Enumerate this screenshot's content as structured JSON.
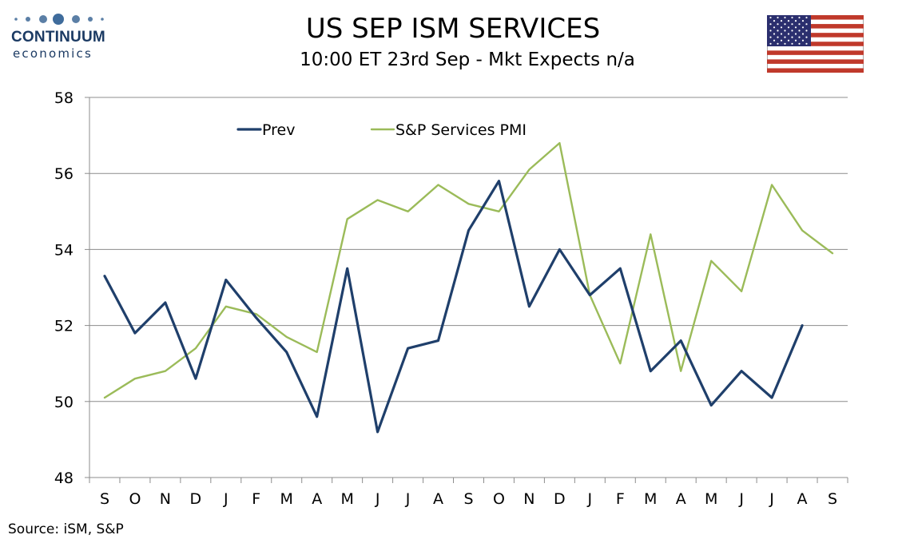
{
  "logo": {
    "name": "CONTINUUM",
    "sub": "economics",
    "color": "#1b3a63"
  },
  "header": {
    "title": "US SEP ISM SERVICES",
    "subtitle": "10:00 ET 23rd Sep - Mkt Expects n/a",
    "flag_icon": "us-flag-icon"
  },
  "source": "Source: iSM, S&P",
  "chart_data": {
    "type": "line",
    "categories": [
      "S",
      "O",
      "N",
      "D",
      "J",
      "F",
      "M",
      "A",
      "M",
      "J",
      "J",
      "A",
      "S",
      "O",
      "N",
      "D",
      "J",
      "F",
      "M",
      "A",
      "M",
      "J",
      "J",
      "A",
      "S"
    ],
    "ylim": [
      48,
      58
    ],
    "yticks": [
      48,
      50,
      52,
      54,
      56,
      58
    ],
    "grid": true,
    "legend_position": "top-left",
    "series": [
      {
        "name": "Prev",
        "color": "#1f3f6b",
        "values": [
          53.3,
          51.8,
          52.6,
          50.6,
          53.2,
          52.2,
          51.3,
          49.6,
          53.5,
          49.2,
          51.4,
          51.6,
          54.5,
          55.8,
          52.5,
          54.0,
          52.8,
          53.5,
          50.8,
          51.6,
          49.9,
          50.8,
          50.1,
          52.0,
          null
        ]
      },
      {
        "name": "S&P Services PMI",
        "color": "#9bbb59",
        "values": [
          50.1,
          50.6,
          50.8,
          51.4,
          52.5,
          52.3,
          51.7,
          51.3,
          54.8,
          55.3,
          55.0,
          55.7,
          55.2,
          55.0,
          56.1,
          56.8,
          52.8,
          51.0,
          54.4,
          50.8,
          53.7,
          52.9,
          55.7,
          54.5,
          53.9
        ]
      }
    ]
  }
}
